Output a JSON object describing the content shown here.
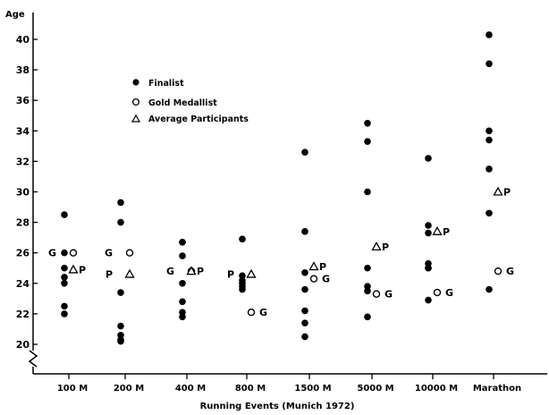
{
  "chart_data": {
    "type": "scatter",
    "title": "",
    "xlabel": "Running Events (Munich 1972)",
    "ylabel": "Age",
    "ylim": [
      19,
      41
    ],
    "yticks": [
      "20",
      "22",
      "24",
      "26",
      "28",
      "30",
      "32",
      "34",
      "36",
      "38",
      "40"
    ],
    "categories": [
      "100 M",
      "200 M",
      "400 M",
      "800 M",
      "1500 M",
      "5000 M",
      "10000 M",
      "Marathon"
    ],
    "legend": {
      "placement": "upper-left",
      "entries": [
        "Finalist",
        "Gold Medallist",
        "Average Participants"
      ]
    },
    "series": [
      {
        "name": "Finalist",
        "marker": "filled-circle",
        "points": [
          {
            "category": "100 M",
            "ages": [
              28.5,
              26.0,
              25.0,
              24.4,
              24.0,
              22.5,
              22.0
            ]
          },
          {
            "category": "200 M",
            "ages": [
              29.3,
              28.0,
              23.4,
              21.2,
              20.6,
              20.3,
              20.2
            ]
          },
          {
            "category": "400 M",
            "ages": [
              26.7,
              26.7,
              25.8,
              24.0,
              22.8,
              22.1,
              21.8
            ]
          },
          {
            "category": "800 M",
            "ages": [
              26.9,
              24.5,
              24.2,
              24.0,
              23.8,
              23.6
            ]
          },
          {
            "category": "1500 M",
            "ages": [
              32.6,
              27.4,
              24.7,
              23.6,
              22.2,
              21.4,
              20.5
            ]
          },
          {
            "category": "5000 M",
            "ages": [
              34.5,
              33.3,
              30.0,
              25.0,
              23.8,
              23.5,
              21.8
            ]
          },
          {
            "category": "10000 M",
            "ages": [
              32.2,
              27.8,
              27.3,
              25.3,
              25.0,
              25.0,
              22.9
            ]
          },
          {
            "category": "Marathon",
            "ages": [
              40.3,
              38.4,
              34.0,
              33.4,
              31.5,
              28.6,
              23.6
            ]
          }
        ]
      },
      {
        "name": "Gold Medallist",
        "marker": "open-circle",
        "label": "G",
        "points": [
          {
            "category": "100 M",
            "age": 26.0
          },
          {
            "category": "200 M",
            "age": 26.0
          },
          {
            "category": "400 M",
            "age": 24.8
          },
          {
            "category": "800 M",
            "age": 22.1
          },
          {
            "category": "1500 M",
            "age": 24.3
          },
          {
            "category": "5000 M",
            "age": 23.3
          },
          {
            "category": "10000 M",
            "age": 23.4
          },
          {
            "category": "Marathon",
            "age": 24.8
          }
        ]
      },
      {
        "name": "Average Participants",
        "marker": "triangle",
        "label": "P",
        "points": [
          {
            "category": "100 M",
            "age": 24.9
          },
          {
            "category": "200 M",
            "age": 24.6
          },
          {
            "category": "400 M",
            "age": 24.8
          },
          {
            "category": "800 M",
            "age": 24.6
          },
          {
            "category": "1500 M",
            "age": 25.1
          },
          {
            "category": "5000 M",
            "age": 26.4
          },
          {
            "category": "10000 M",
            "age": 27.4
          },
          {
            "category": "Marathon",
            "age": 30.0
          }
        ]
      }
    ]
  }
}
